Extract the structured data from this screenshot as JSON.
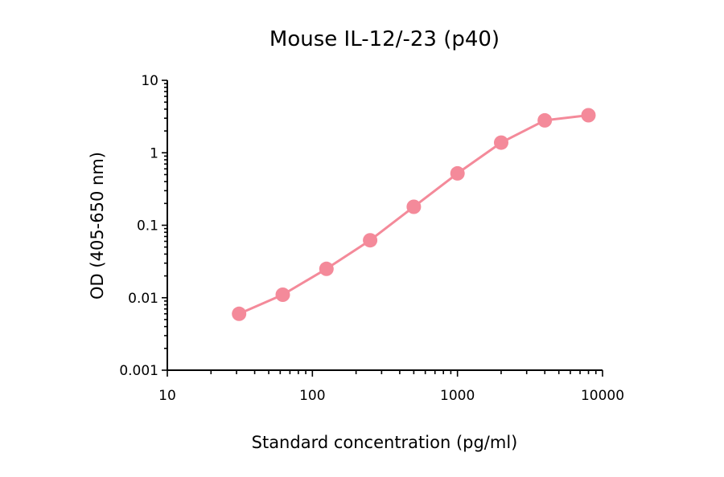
{
  "chart_data": {
    "type": "line",
    "title": "Mouse IL-12/-23 (p40)",
    "xlabel": "Standard concentration (pg/ml)",
    "ylabel": "OD (405-650 nm)",
    "x_scale": "log",
    "y_scale": "log",
    "xlim": [
      10,
      10000
    ],
    "ylim": [
      0.001,
      10
    ],
    "x_ticks": [
      10,
      100,
      1000,
      10000
    ],
    "x_tick_labels": [
      "10",
      "100",
      "1000",
      "10000"
    ],
    "y_ticks": [
      0.001,
      0.01,
      0.1,
      1,
      10
    ],
    "y_tick_labels": [
      "0.001",
      "0.01",
      "0.1",
      "1",
      "10"
    ],
    "grid": false,
    "legend": "none",
    "series": [
      {
        "color": "#f48a9a",
        "marker": "circle",
        "x": [
          31.25,
          62.5,
          125,
          250,
          500,
          1000,
          2000,
          4000,
          8000
        ],
        "y": [
          0.006,
          0.011,
          0.025,
          0.062,
          0.18,
          0.52,
          1.38,
          2.8,
          3.3
        ]
      }
    ]
  }
}
